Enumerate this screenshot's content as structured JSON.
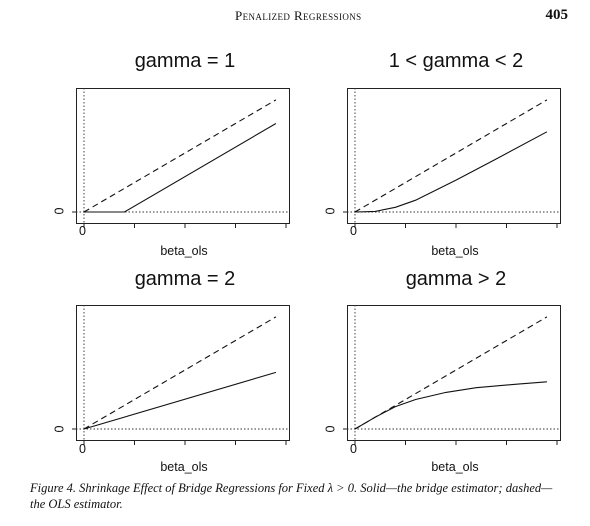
{
  "header": {
    "running_head": "Penalized Regressions",
    "page_number": "405"
  },
  "panels": [
    {
      "title": "gamma = 1",
      "xlabel": "beta_ols",
      "x_tick": "0",
      "y_tick": "0"
    },
    {
      "title": "1 < gamma < 2",
      "xlabel": "beta_ols",
      "x_tick": "0",
      "y_tick": "0"
    },
    {
      "title": "gamma = 2",
      "xlabel": "beta_ols",
      "x_tick": "0",
      "y_tick": "0"
    },
    {
      "title": "gamma > 2",
      "xlabel": "beta_ols",
      "x_tick": "0",
      "y_tick": "0"
    }
  ],
  "caption": "Figure 4.  Shrinkage Effect of Bridge Regressions for Fixed λ > 0. Solid—the bridge estimator; dashed—the OLS estimator.",
  "chart_data": [
    {
      "type": "line",
      "title": "gamma = 1",
      "xlabel": "beta_ols",
      "xlim": [
        0,
        1
      ],
      "ylim": [
        0,
        1
      ],
      "series": [
        {
          "style": "solid",
          "x": [
            0,
            0.2,
            0.95
          ],
          "y": [
            0,
            0,
            0.75
          ]
        },
        {
          "style": "dashed",
          "x": [
            0,
            0.95
          ],
          "y": [
            0,
            0.95
          ]
        }
      ]
    },
    {
      "type": "line",
      "title": "1 < gamma < 2",
      "xlabel": "beta_ols",
      "xlim": [
        0,
        1
      ],
      "ylim": [
        0,
        1
      ],
      "series": [
        {
          "style": "solid",
          "x": [
            0,
            0.1,
            0.2,
            0.3,
            0.5,
            0.7,
            0.95
          ],
          "y": [
            0,
            0.005,
            0.04,
            0.1,
            0.27,
            0.45,
            0.68
          ]
        },
        {
          "style": "dashed",
          "x": [
            0,
            0.95
          ],
          "y": [
            0,
            0.95
          ]
        }
      ]
    },
    {
      "type": "line",
      "title": "gamma = 2",
      "xlabel": "beta_ols",
      "xlim": [
        0,
        1
      ],
      "ylim": [
        0,
        1
      ],
      "series": [
        {
          "style": "solid",
          "x": [
            0,
            0.95
          ],
          "y": [
            0,
            0.48
          ]
        },
        {
          "style": "dashed",
          "x": [
            0,
            0.95
          ],
          "y": [
            0,
            0.95
          ]
        }
      ]
    },
    {
      "type": "line",
      "title": "gamma > 2",
      "xlabel": "beta_ols",
      "xlim": [
        0,
        1
      ],
      "ylim": [
        0,
        1
      ],
      "series": [
        {
          "style": "solid",
          "x": [
            0,
            0.1,
            0.2,
            0.3,
            0.45,
            0.6,
            0.8,
            0.95
          ],
          "y": [
            0,
            0.1,
            0.19,
            0.25,
            0.31,
            0.35,
            0.38,
            0.4
          ]
        },
        {
          "style": "dashed",
          "x": [
            0,
            0.95
          ],
          "y": [
            0,
            0.95
          ]
        }
      ]
    }
  ]
}
